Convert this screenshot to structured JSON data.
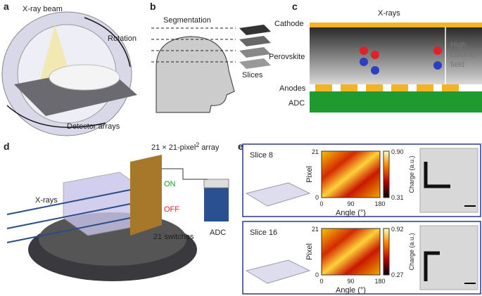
{
  "panels": {
    "a": {
      "label": "a",
      "beam": "X-ray beam",
      "rotation": "Rotation",
      "detector": "Detector arrays"
    },
    "b": {
      "label": "b",
      "segmentation": "Segmentation",
      "slices": "Slices"
    },
    "c": {
      "label": "c",
      "xrays": "X-rays",
      "cathode": "Cathode",
      "perovskite": "Perovskite",
      "field": [
        "High",
        "electric",
        "field"
      ],
      "anodes": "Anodes",
      "adc": "ADC"
    },
    "d": {
      "label": "d",
      "array": [
        "21 × 21-pixel",
        "2",
        "array"
      ],
      "on": "ON",
      "off": "OFF",
      "xrays": "X-rays",
      "switches": "21 switches",
      "adc": "ADC"
    },
    "e": {
      "label": "e",
      "rows": [
        {
          "slice": "Slice 8",
          "yaxis": "Pixel",
          "yticks": [
            "21",
            "0"
          ],
          "xaxis": "Angle (°)",
          "xticks": [
            "0",
            "90",
            "180"
          ],
          "cbar": "Charge (a.u.)",
          "cticks": [
            "0.90",
            "0.31"
          ]
        },
        {
          "slice": "Slice 16",
          "yaxis": "Pixel",
          "yticks": [
            "21",
            "0"
          ],
          "xaxis": "Angle (°)",
          "xticks": [
            "0",
            "90",
            "180"
          ],
          "cbar": "Charge (a.u.)",
          "cticks": [
            "0.92",
            "0.27"
          ]
        }
      ]
    }
  }
}
